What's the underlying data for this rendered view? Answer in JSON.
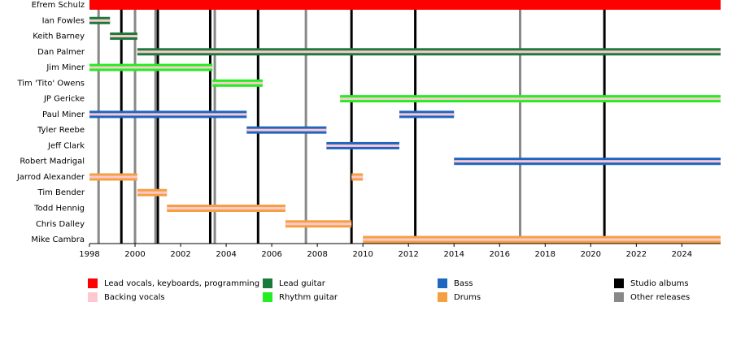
{
  "chart_data": {
    "type": "timeline",
    "xlim": [
      1998,
      2025.7
    ],
    "xticks": [
      1998,
      2000,
      2002,
      2004,
      2006,
      2008,
      2010,
      2012,
      2014,
      2016,
      2018,
      2020,
      2022,
      2024
    ],
    "roles": [
      {
        "name": "Lead vocals, keyboards, programming",
        "color": "#ff0000"
      },
      {
        "name": "Backing vocals",
        "color": "#ffc8d0"
      },
      {
        "name": "Lead guitar",
        "color": "#1a7a3a"
      },
      {
        "name": "Rhythm guitar",
        "color": "#22ee22"
      },
      {
        "name": "Bass",
        "color": "#1e66c0"
      },
      {
        "name": "Drums",
        "color": "#f5a040"
      }
    ],
    "events": [
      {
        "name": "Studio albums",
        "color": "#000000",
        "x": [
          1999.4,
          2001.0,
          2003.3,
          2005.4,
          2009.5,
          2012.3,
          2020.6
        ]
      },
      {
        "name": "Other releases",
        "color": "#888888",
        "x": [
          1998.4,
          2000.0,
          2000.9,
          2003.5,
          2007.5,
          2016.9
        ]
      }
    ],
    "members": [
      {
        "name": "Efrem Schulz",
        "periods": [
          {
            "start": 1998,
            "end": 2025.7,
            "role": 0
          }
        ]
      },
      {
        "name": "Ian Fowles",
        "periods": [
          {
            "start": 1998,
            "end": 1998.9,
            "role": 2,
            "stripe": 1
          }
        ]
      },
      {
        "name": "Keith Barney",
        "periods": [
          {
            "start": 1998.9,
            "end": 2000.1,
            "role": 2,
            "stripe": 1
          }
        ]
      },
      {
        "name": "Dan Palmer",
        "periods": [
          {
            "start": 2000.1,
            "end": 2025.7,
            "role": 2,
            "stripe": 1
          }
        ]
      },
      {
        "name": "Jim Miner",
        "periods": [
          {
            "start": 1998,
            "end": 2003.4,
            "role": 3,
            "stripe": 1
          }
        ]
      },
      {
        "name": "Tim 'Tito' Owens",
        "periods": [
          {
            "start": 2003.4,
            "end": 2005.6,
            "role": 3,
            "stripe": 1
          }
        ]
      },
      {
        "name": "JP Gericke",
        "periods": [
          {
            "start": 2009.0,
            "end": 2025.7,
            "role": 3,
            "stripe": 1
          }
        ]
      },
      {
        "name": "Paul Miner",
        "periods": [
          {
            "start": 1998,
            "end": 2004.9,
            "role": 4,
            "stripe": 1
          },
          {
            "start": 2011.6,
            "end": 2014.0,
            "role": 4,
            "stripe": 1
          }
        ]
      },
      {
        "name": "Tyler Reebe",
        "periods": [
          {
            "start": 2004.9,
            "end": 2008.4,
            "role": 4,
            "stripe": 1
          }
        ]
      },
      {
        "name": "Jeff Clark",
        "periods": [
          {
            "start": 2008.4,
            "end": 2011.6,
            "role": 4,
            "stripe": 1
          }
        ]
      },
      {
        "name": "Robert Madrigal",
        "periods": [
          {
            "start": 2014.0,
            "end": 2025.7,
            "role": 4,
            "stripe": 1
          }
        ]
      },
      {
        "name": "Jarrod Alexander",
        "periods": [
          {
            "start": 1998,
            "end": 2000.1,
            "role": 5,
            "stripe": 1
          },
          {
            "start": 2009.5,
            "end": 2010.0,
            "role": 5,
            "stripe": 1
          }
        ]
      },
      {
        "name": "Tim Bender",
        "periods": [
          {
            "start": 2000.1,
            "end": 2001.4,
            "role": 5,
            "stripe": 1
          }
        ]
      },
      {
        "name": "Todd Hennig",
        "periods": [
          {
            "start": 2001.4,
            "end": 2006.6,
            "role": 5,
            "stripe": 1
          }
        ]
      },
      {
        "name": "Chris Dalley",
        "periods": [
          {
            "start": 2006.6,
            "end": 2009.5,
            "role": 5,
            "stripe": 1
          }
        ]
      },
      {
        "name": "Mike Cambra",
        "periods": [
          {
            "start": 2010.0,
            "end": 2025.7,
            "role": 5,
            "stripe": 1
          }
        ]
      }
    ]
  }
}
